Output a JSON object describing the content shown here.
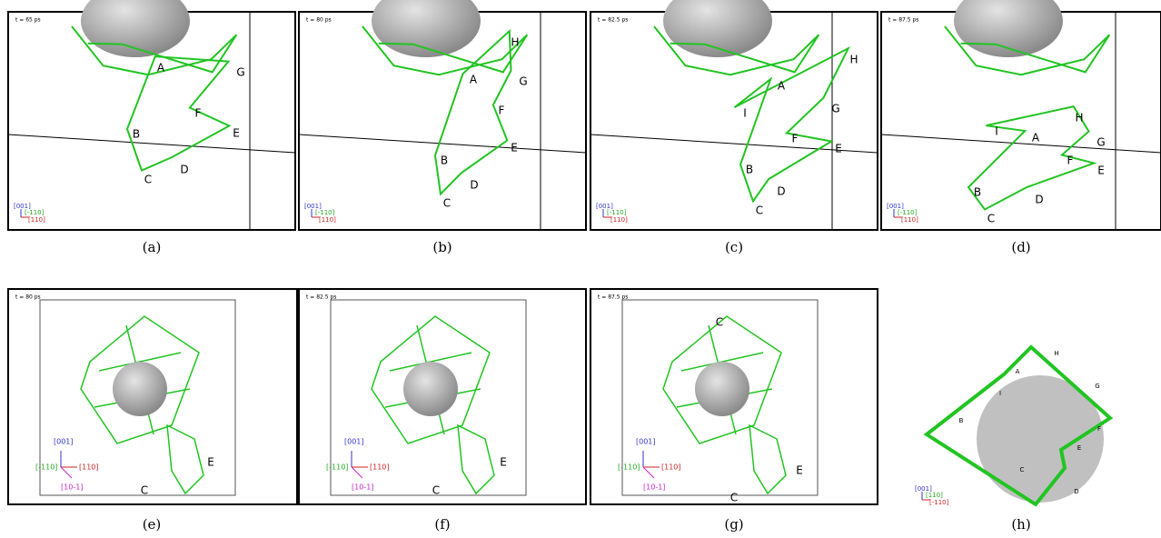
{
  "panels": [
    {
      "caption": "(a)",
      "time": "t = 65 ps",
      "axes": [
        "[001]",
        "[-110]",
        "[110]"
      ],
      "labels": [
        "A",
        "B",
        "C",
        "D",
        "E",
        "F",
        "G"
      ]
    },
    {
      "caption": "(b)",
      "time": "t = 80 ps",
      "axes": [
        "[001]",
        "[-110]",
        "[110]"
      ],
      "labels": [
        "A",
        "B",
        "C",
        "D",
        "E",
        "F",
        "G",
        "H"
      ]
    },
    {
      "caption": "(c)",
      "time": "t = 82.5 ps",
      "axes": [
        "[001]",
        "[-110]",
        "[110]"
      ],
      "labels": [
        "A",
        "B",
        "C",
        "D",
        "E",
        "F",
        "G",
        "H",
        "I"
      ]
    },
    {
      "caption": "(d)",
      "time": "t = 87.5 ps",
      "axes": [
        "[001]",
        "[-110]",
        "[110]"
      ],
      "labels": [
        "A",
        "B",
        "C",
        "D",
        "E",
        "F",
        "G",
        "H",
        "I"
      ]
    },
    {
      "caption": "(e)",
      "time": "t = 80 ps",
      "axes": [
        "[001]",
        "[-110]",
        "[110]",
        "[10-1]"
      ],
      "labels": [
        "E",
        "C"
      ]
    },
    {
      "caption": "(f)",
      "time": "t = 82.5 ps",
      "axes": [
        "[001]",
        "[-110]",
        "[110]",
        "[10-1]"
      ],
      "labels": [
        "E",
        "C"
      ]
    },
    {
      "caption": "(g)",
      "time": "t = 87.5 ps",
      "axes": [
        "[001]",
        "[-110]",
        "[110]",
        "[10-1]"
      ],
      "labels": [
        "C",
        "E",
        "C"
      ]
    },
    {
      "caption": "(h)",
      "axes": [
        "[001]",
        "[110]",
        "[-110]"
      ],
      "labels": [
        "A",
        "B",
        "C",
        "D",
        "E",
        "F",
        "G",
        "H",
        "I"
      ]
    }
  ]
}
